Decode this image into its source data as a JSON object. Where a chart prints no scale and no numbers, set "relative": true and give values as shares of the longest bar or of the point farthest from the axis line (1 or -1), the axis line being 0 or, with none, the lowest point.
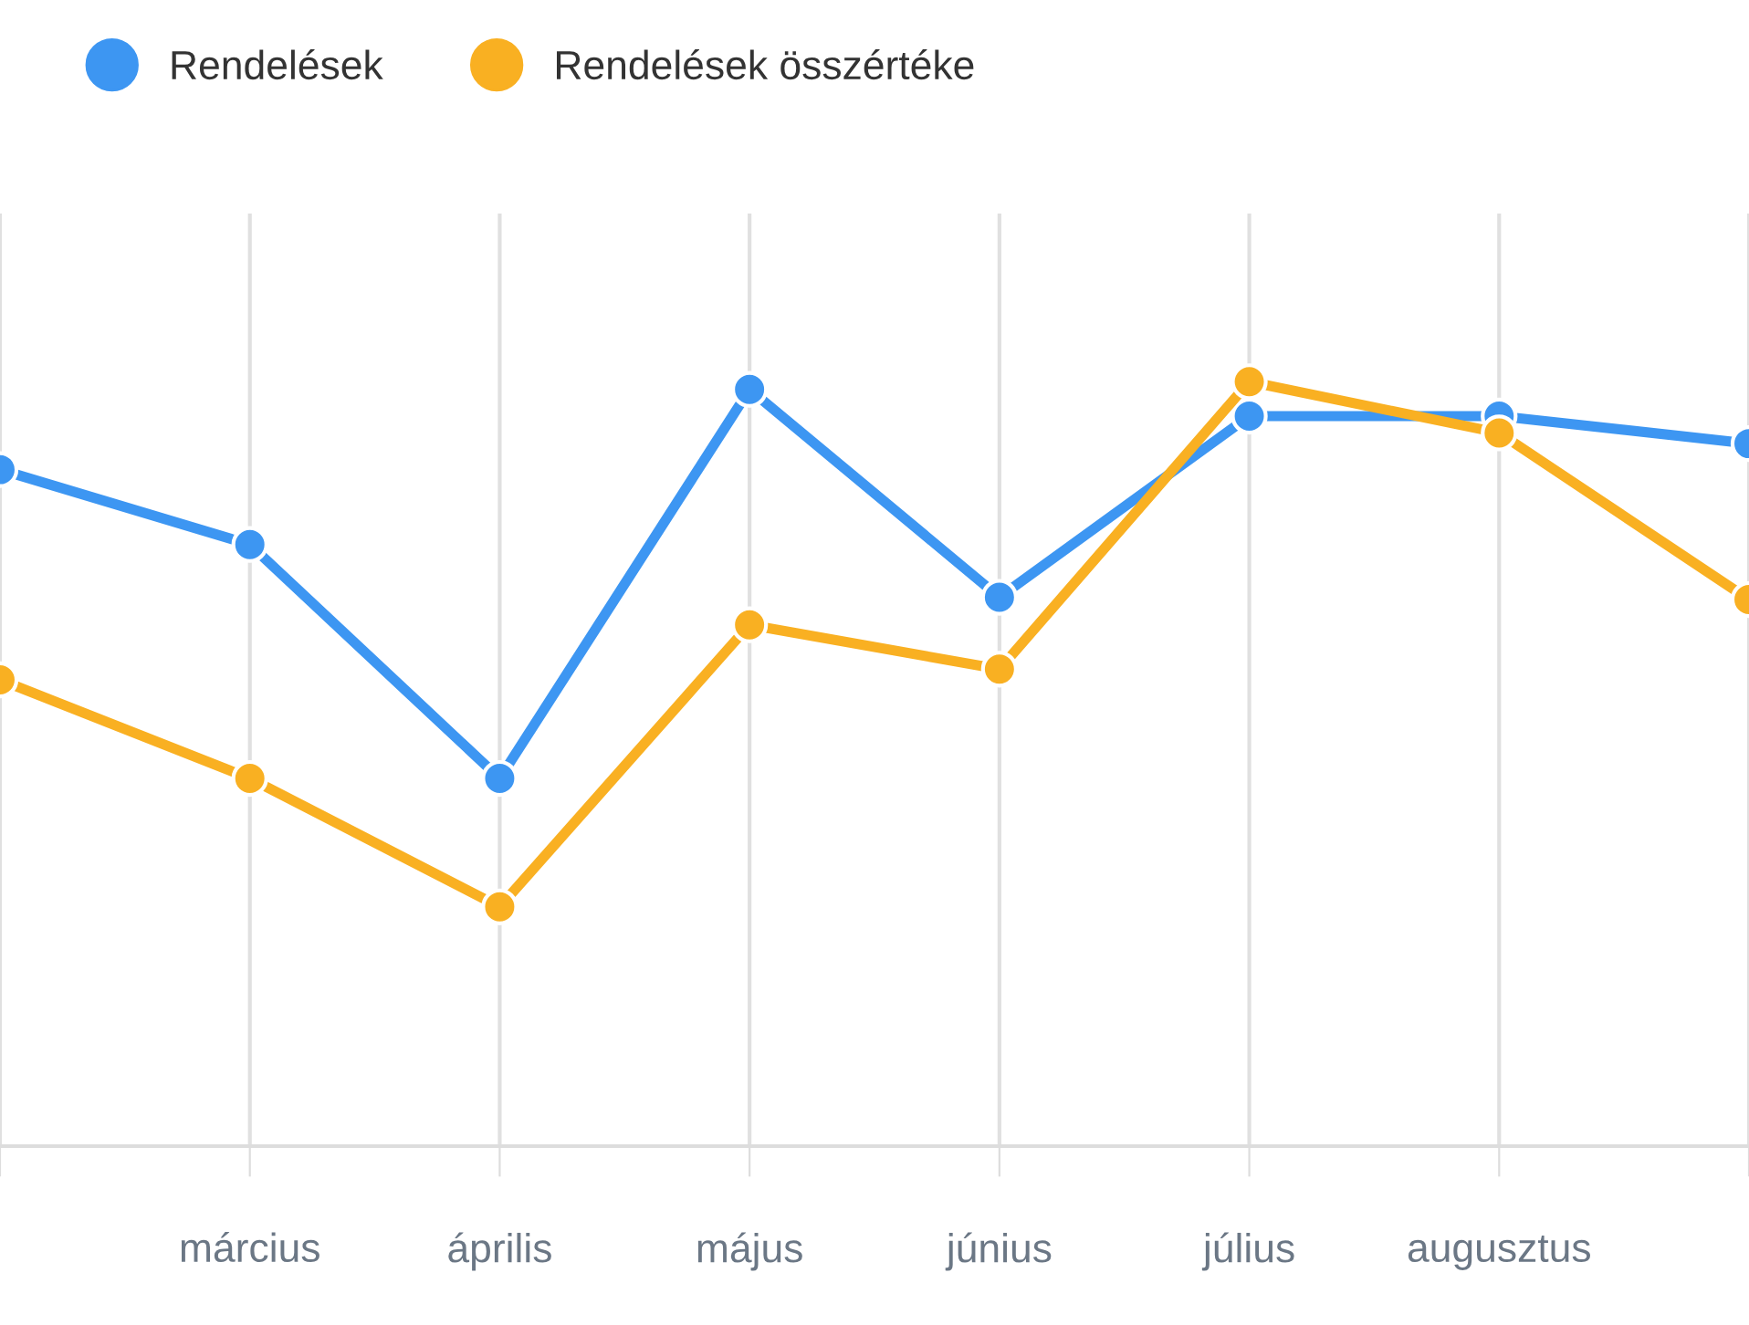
{
  "chart_data": {
    "type": "line",
    "relative": true,
    "categories": [
      null,
      "március",
      "április",
      "május",
      "június",
      "július",
      "augusztus",
      null
    ],
    "series": [
      {
        "name": "Rendelések",
        "color": "#3d96f2",
        "values": [
          0.885,
          0.787,
          0.481,
          0.99,
          0.718,
          0.955,
          0.955,
          0.919
        ]
      },
      {
        "name": "Rendelések összértéke",
        "color": "#f9b022",
        "values": [
          0.61,
          0.481,
          0.313,
          0.682,
          0.624,
          1.0,
          0.933,
          0.715
        ]
      }
    ],
    "grid": "x",
    "legend": "top left",
    "marker": "circle",
    "line_style": "solid"
  }
}
